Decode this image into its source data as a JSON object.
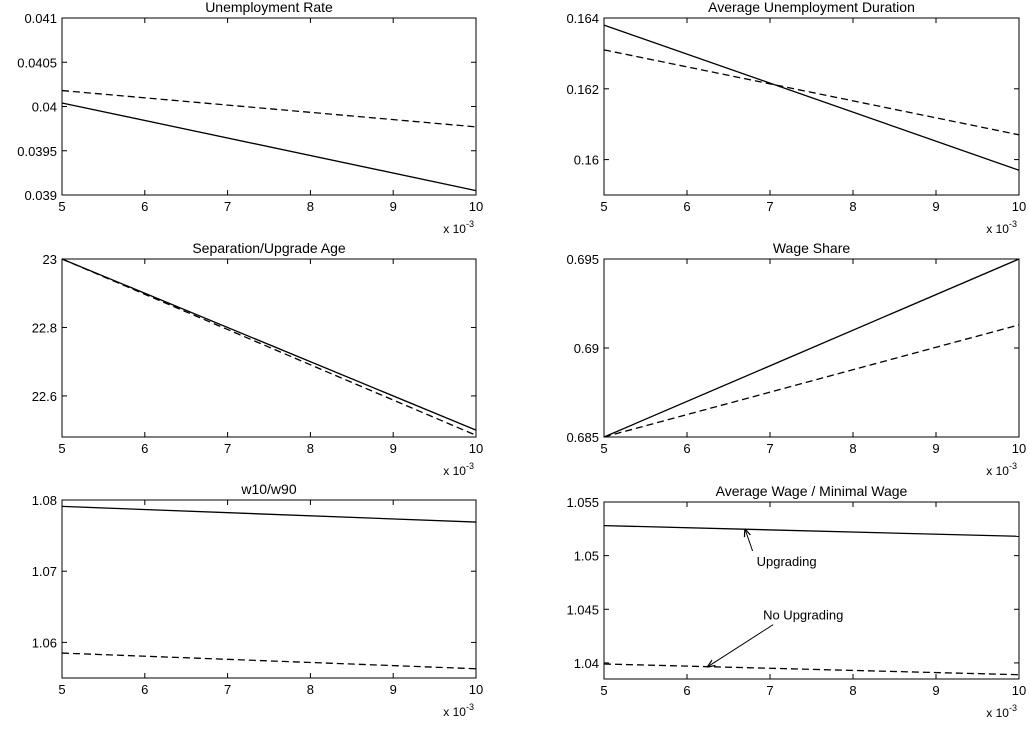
{
  "chart_data": [
    {
      "type": "line",
      "title": "Unemployment Rate",
      "xlabel": "",
      "ylabel": "",
      "x_multiplier_label": "x 10",
      "x_multiplier_exp": "-3",
      "xlim": [
        5,
        10
      ],
      "ylim": [
        0.039,
        0.041
      ],
      "x_ticks": [
        5,
        6,
        7,
        8,
        9,
        10
      ],
      "x_tick_labels": [
        "5",
        "6",
        "7",
        "8",
        "9",
        "10"
      ],
      "y_ticks": [
        0.039,
        0.0395,
        0.04,
        0.0405,
        0.041
      ],
      "y_tick_labels": [
        "0.039",
        "0.0395",
        "0.04",
        "0.0405",
        "0.041"
      ],
      "grid": false,
      "series": [
        {
          "style": "solid",
          "color": "#000000",
          "x": [
            5,
            10
          ],
          "values": [
            0.04004,
            0.03905
          ]
        },
        {
          "style": "dashed",
          "color": "#000000",
          "x": [
            5,
            10
          ],
          "values": [
            0.04018,
            0.03977
          ]
        }
      ]
    },
    {
      "type": "line",
      "title": "Average Unemployment Duration",
      "xlabel": "",
      "ylabel": "",
      "x_multiplier_label": "x 10",
      "x_multiplier_exp": "-3",
      "xlim": [
        5,
        10
      ],
      "ylim": [
        0.159,
        0.164
      ],
      "x_ticks": [
        5,
        6,
        7,
        8,
        9,
        10
      ],
      "x_tick_labels": [
        "5",
        "6",
        "7",
        "8",
        "9",
        "10"
      ],
      "y_ticks": [
        0.16,
        0.162,
        0.164
      ],
      "y_tick_labels": [
        "0.16",
        "0.162",
        "0.164"
      ],
      "grid": false,
      "series": [
        {
          "style": "solid",
          "color": "#000000",
          "x": [
            5,
            10
          ],
          "values": [
            0.1638,
            0.1597
          ]
        },
        {
          "style": "dashed",
          "color": "#000000",
          "x": [
            5,
            10
          ],
          "values": [
            0.1631,
            0.1607
          ]
        }
      ]
    },
    {
      "type": "line",
      "title": "Separation/Upgrade Age",
      "xlabel": "",
      "ylabel": "",
      "x_multiplier_label": "x 10",
      "x_multiplier_exp": "-3",
      "xlim": [
        5,
        10
      ],
      "ylim": [
        22.48,
        23.0
      ],
      "x_ticks": [
        5,
        6,
        7,
        8,
        9,
        10
      ],
      "x_tick_labels": [
        "5",
        "6",
        "7",
        "8",
        "9",
        "10"
      ],
      "y_ticks": [
        22.6,
        22.8,
        23
      ],
      "y_tick_labels": [
        "22.6",
        "22.8",
        "23"
      ],
      "grid": false,
      "series": [
        {
          "style": "solid",
          "color": "#000000",
          "x": [
            5,
            10
          ],
          "values": [
            23.0,
            22.5
          ]
        },
        {
          "style": "dashed",
          "color": "#000000",
          "x": [
            5,
            10
          ],
          "values": [
            23.0,
            22.485
          ]
        }
      ]
    },
    {
      "type": "line",
      "title": "Wage Share",
      "xlabel": "",
      "ylabel": "",
      "x_multiplier_label": "x 10",
      "x_multiplier_exp": "-3",
      "xlim": [
        5,
        10
      ],
      "ylim": [
        0.685,
        0.695
      ],
      "x_ticks": [
        5,
        6,
        7,
        8,
        9,
        10
      ],
      "x_tick_labels": [
        "5",
        "6",
        "7",
        "8",
        "9",
        "10"
      ],
      "y_ticks": [
        0.685,
        0.69,
        0.695
      ],
      "y_tick_labels": [
        "0.685",
        "0.69",
        "0.695"
      ],
      "grid": false,
      "series": [
        {
          "style": "solid",
          "color": "#000000",
          "x": [
            5,
            10
          ],
          "values": [
            0.685,
            0.695
          ]
        },
        {
          "style": "dashed",
          "color": "#000000",
          "x": [
            5,
            10
          ],
          "values": [
            0.685,
            0.6913
          ]
        }
      ]
    },
    {
      "type": "line",
      "title": "w10/w90",
      "xlabel": "",
      "ylabel": "",
      "x_multiplier_label": "x 10",
      "x_multiplier_exp": "-3",
      "xlim": [
        5,
        10
      ],
      "ylim": [
        1.055,
        1.08
      ],
      "x_ticks": [
        5,
        6,
        7,
        8,
        9,
        10
      ],
      "x_tick_labels": [
        "5",
        "6",
        "7",
        "8",
        "9",
        "10"
      ],
      "y_ticks": [
        1.06,
        1.07,
        1.08
      ],
      "y_tick_labels": [
        "1.06",
        "1.07",
        "1.08"
      ],
      "grid": false,
      "series": [
        {
          "style": "solid",
          "color": "#000000",
          "x": [
            5,
            10
          ],
          "values": [
            1.0791,
            1.0769
          ]
        },
        {
          "style": "dashed",
          "color": "#000000",
          "x": [
            5,
            10
          ],
          "values": [
            1.0585,
            1.0563
          ]
        }
      ]
    },
    {
      "type": "line",
      "title": "Average Wage / Minimal Wage",
      "xlabel": "",
      "ylabel": "",
      "x_multiplier_label": "x 10",
      "x_multiplier_exp": "-3",
      "xlim": [
        5,
        10
      ],
      "ylim": [
        1.0385,
        1.055
      ],
      "x_ticks": [
        5,
        6,
        7,
        8,
        9,
        10
      ],
      "x_tick_labels": [
        "5",
        "6",
        "7",
        "8",
        "9",
        "10"
      ],
      "y_ticks": [
        1.04,
        1.045,
        1.05,
        1.055
      ],
      "y_tick_labels": [
        "1.04",
        "1.045",
        "1.05",
        "1.055"
      ],
      "grid": false,
      "series": [
        {
          "style": "solid",
          "color": "#000000",
          "x": [
            5,
            10
          ],
          "values": [
            1.0528,
            1.0518
          ]
        },
        {
          "style": "dashed",
          "color": "#000000",
          "x": [
            5,
            10
          ],
          "values": [
            1.0399,
            1.0389
          ]
        }
      ],
      "annotations": [
        {
          "text": "Upgrading",
          "series_index": 0,
          "target_x": 6.7,
          "target_y": 1.05245,
          "text_x": 7.2,
          "text_y": 1.0495
        },
        {
          "text": "No Upgrading",
          "series_index": 1,
          "target_x": 6.25,
          "target_y": 1.03965,
          "text_x": 7.4,
          "text_y": 1.0445
        }
      ]
    }
  ]
}
